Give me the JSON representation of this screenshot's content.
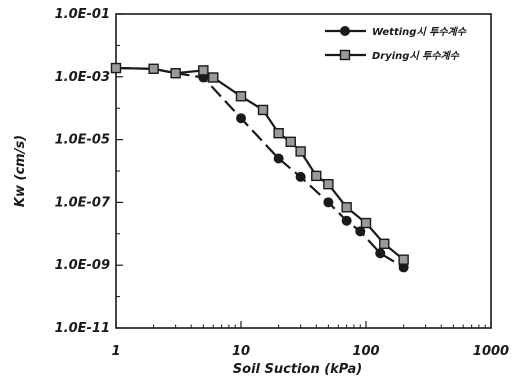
{
  "chart_data": {
    "type": "line",
    "xlabel": "Soil Suction (kPa)",
    "ylabel": "Kw (cm/s)",
    "x_scale": "log",
    "y_scale": "log",
    "xlim": [
      1,
      1000
    ],
    "ylim": [
      1e-11,
      0.1
    ],
    "x_ticks": [
      1,
      10,
      100,
      1000
    ],
    "x_tick_labels": [
      "1",
      "10",
      "100",
      "1000"
    ],
    "y_ticks": [
      0.1,
      0.001,
      1e-05,
      1e-07,
      1e-09,
      1e-11
    ],
    "y_tick_labels": [
      "1.0E-01",
      "1.0E-03",
      "1.0E-05",
      "1.0E-07",
      "1.0E-09",
      "1.0E-11"
    ],
    "grid": false,
    "legend_position": "top-right",
    "series": [
      {
        "name": "Wetting시 투수계수",
        "marker": "circle",
        "color": "#1a1a1a",
        "x": [
          1,
          2,
          3,
          5,
          10,
          20,
          30,
          50,
          70,
          90,
          130,
          200
        ],
        "y": [
          0.0019,
          0.0018,
          0.0013,
          0.00095,
          4.8e-05,
          2.5e-06,
          6.5e-07,
          1e-07,
          2.6e-08,
          1.2e-08,
          2.4e-09,
          8.5e-10
        ]
      },
      {
        "name": "Drying시 투수계수",
        "marker": "square",
        "color": "#1a1a1a",
        "x": [
          1,
          2,
          3,
          5,
          6,
          10,
          15,
          20,
          25,
          30,
          40,
          50,
          70,
          100,
          140,
          200
        ],
        "y": [
          0.0019,
          0.0018,
          0.0013,
          0.0016,
          0.00095,
          0.00024,
          8.8e-05,
          1.6e-05,
          8.5e-06,
          4.2e-06,
          7e-07,
          3.8e-07,
          7e-08,
          2.2e-08,
          4.8e-09,
          1.5e-09
        ]
      }
    ]
  }
}
